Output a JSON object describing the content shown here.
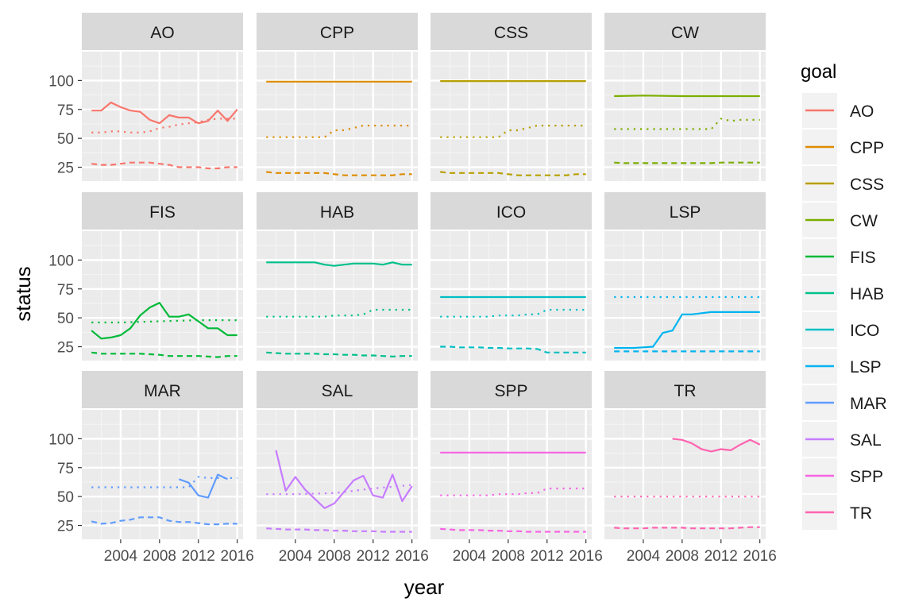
{
  "chart_data": {
    "type": "line",
    "xlabel": "year",
    "ylabel": "status",
    "legend_title": "goal",
    "legend_position": "right",
    "grid": true,
    "x_ticks": [
      "2004",
      "2008",
      "2012",
      "2016"
    ],
    "y_ticks": [
      "25",
      "50",
      "75",
      "100"
    ],
    "xlim": [
      2000,
      2016.6
    ],
    "ylim": [
      13,
      125
    ],
    "facets": [
      {
        "goal": "AO",
        "color": "#F8766D",
        "solid": {
          "x": [
            2001,
            2002,
            2003,
            2004,
            2005,
            2006,
            2007,
            2008,
            2009,
            2010,
            2011,
            2012,
            2013,
            2014,
            2015,
            2016
          ],
          "y": [
            74,
            74,
            81,
            77,
            74,
            73,
            66,
            63,
            70,
            68,
            68,
            63,
            65,
            74,
            65,
            75
          ]
        },
        "dotted": {
          "x": [
            2001,
            2002,
            2003,
            2004,
            2005,
            2006,
            2007,
            2008,
            2009,
            2010,
            2011,
            2012,
            2013,
            2014,
            2015,
            2016
          ],
          "y": [
            55,
            55,
            56,
            56,
            55,
            55,
            56,
            59,
            60,
            62,
            63,
            64,
            66,
            67,
            67,
            67
          ]
        },
        "dashed": {
          "x": [
            2001,
            2002,
            2003,
            2004,
            2005,
            2006,
            2007,
            2008,
            2009,
            2010,
            2011,
            2012,
            2013,
            2014,
            2015,
            2016
          ],
          "y": [
            28,
            27,
            27,
            28,
            29,
            29,
            29,
            28,
            27,
            25,
            25,
            25,
            24,
            24,
            25,
            25
          ]
        }
      },
      {
        "goal": "CPP",
        "color": "#DE8C00",
        "solid": {
          "x": [
            2001,
            2004,
            2008,
            2012,
            2016
          ],
          "y": [
            99,
            99,
            99,
            99,
            99
          ]
        },
        "dotted": {
          "x": [
            2001,
            2002,
            2003,
            2004,
            2005,
            2006,
            2007,
            2008,
            2009,
            2010,
            2011,
            2012,
            2013,
            2014,
            2015,
            2016
          ],
          "y": [
            51,
            51,
            51,
            51,
            51,
            51,
            51,
            57,
            57,
            59,
            61,
            61,
            61,
            61,
            61,
            61
          ]
        },
        "dashed": {
          "x": [
            2001,
            2002,
            2003,
            2004,
            2005,
            2006,
            2007,
            2008,
            2009,
            2010,
            2011,
            2012,
            2013,
            2014,
            2015,
            2016
          ],
          "y": [
            21,
            20,
            20,
            20,
            20,
            20,
            20,
            19,
            18,
            18,
            18,
            18,
            18,
            18,
            19,
            19
          ]
        }
      },
      {
        "goal": "CSS",
        "color": "#B79F00",
        "solid": {
          "x": [
            2001,
            2004,
            2008,
            2012,
            2016
          ],
          "y": [
            99.5,
            99.5,
            99.5,
            99.5,
            99.5
          ]
        },
        "dotted": {
          "x": [
            2001,
            2002,
            2003,
            2004,
            2005,
            2006,
            2007,
            2008,
            2009,
            2010,
            2011,
            2012,
            2013,
            2014,
            2015,
            2016
          ],
          "y": [
            51,
            51,
            51,
            51,
            51,
            51,
            51,
            57,
            57,
            59,
            61,
            61,
            61,
            61,
            61,
            61
          ]
        },
        "dashed": {
          "x": [
            2001,
            2002,
            2003,
            2004,
            2005,
            2006,
            2007,
            2008,
            2009,
            2010,
            2011,
            2012,
            2013,
            2014,
            2015,
            2016
          ],
          "y": [
            21,
            20,
            20,
            20,
            20,
            20,
            20,
            19,
            18,
            18,
            18,
            18,
            18,
            18,
            19,
            19
          ]
        }
      },
      {
        "goal": "CW",
        "color": "#7CAE00",
        "solid": {
          "x": [
            2001,
            2004,
            2008,
            2012,
            2016
          ],
          "y": [
            86.5,
            87,
            86.5,
            86.5,
            86.5
          ]
        },
        "dotted": {
          "x": [
            2001,
            2002,
            2003,
            2004,
            2005,
            2006,
            2007,
            2008,
            2009,
            2010,
            2011,
            2012,
            2013,
            2014,
            2015,
            2016
          ],
          "y": [
            58,
            58,
            58,
            58,
            58,
            58,
            58,
            58,
            58,
            58,
            58,
            67,
            65,
            66,
            66,
            66
          ]
        },
        "dashed": {
          "x": [
            2001,
            2002,
            2003,
            2004,
            2005,
            2006,
            2007,
            2008,
            2009,
            2010,
            2011,
            2012,
            2013,
            2014,
            2015,
            2016
          ],
          "y": [
            29,
            28.5,
            28.5,
            28.5,
            28.5,
            28.5,
            28.5,
            28.5,
            28.5,
            28.5,
            28.5,
            29,
            29,
            29,
            29,
            29
          ]
        }
      },
      {
        "goal": "FIS",
        "color": "#00BA38",
        "solid": {
          "x": [
            2001,
            2002,
            2003,
            2004,
            2005,
            2006,
            2007,
            2008,
            2009,
            2010,
            2011,
            2012,
            2013,
            2014,
            2015,
            2016
          ],
          "y": [
            39,
            32,
            33,
            35,
            41,
            52,
            59,
            63,
            51,
            51,
            53,
            47,
            41,
            41,
            35,
            35
          ]
        },
        "dotted": {
          "x": [
            2001,
            2004,
            2008,
            2012,
            2016
          ],
          "y": [
            46,
            46,
            47,
            48,
            48
          ]
        },
        "dashed": {
          "x": [
            2001,
            2002,
            2003,
            2004,
            2005,
            2006,
            2007,
            2008,
            2009,
            2010,
            2011,
            2012,
            2013,
            2014,
            2015,
            2016
          ],
          "y": [
            20,
            19,
            19,
            19,
            19,
            19,
            18.5,
            18,
            17,
            17,
            17,
            17,
            16.5,
            16,
            17,
            17
          ]
        }
      },
      {
        "goal": "HAB",
        "color": "#00C08B",
        "solid": {
          "x": [
            2001,
            2002,
            2003,
            2004,
            2005,
            2006,
            2007,
            2008,
            2009,
            2010,
            2011,
            2012,
            2013,
            2014,
            2015,
            2016
          ],
          "y": [
            98,
            98,
            98,
            98,
            98,
            98,
            96,
            95,
            96,
            97,
            97,
            97,
            96,
            98,
            96,
            96
          ]
        },
        "dotted": {
          "x": [
            2001,
            2002,
            2003,
            2004,
            2005,
            2006,
            2007,
            2008,
            2009,
            2010,
            2011,
            2012,
            2013,
            2014,
            2015,
            2016
          ],
          "y": [
            51,
            51,
            51,
            51,
            51,
            51,
            51,
            52,
            52,
            52,
            53,
            57,
            57,
            57,
            57,
            57
          ]
        },
        "dashed": {
          "x": [
            2001,
            2002,
            2003,
            2004,
            2005,
            2006,
            2007,
            2008,
            2009,
            2010,
            2011,
            2012,
            2013,
            2014,
            2015,
            2016
          ],
          "y": [
            20,
            19.5,
            19,
            19,
            19,
            19,
            18.5,
            18.5,
            18,
            18,
            17.5,
            17.5,
            17,
            16.5,
            17,
            17
          ]
        }
      },
      {
        "goal": "ICO",
        "color": "#00BFC4",
        "solid": {
          "x": [
            2001,
            2004,
            2008,
            2012,
            2016
          ],
          "y": [
            68,
            68,
            68,
            68,
            68
          ]
        },
        "dotted": {
          "x": [
            2001,
            2002,
            2003,
            2004,
            2005,
            2006,
            2007,
            2008,
            2009,
            2010,
            2011,
            2012,
            2013,
            2014,
            2015,
            2016
          ],
          "y": [
            51,
            51,
            51,
            51,
            51,
            51,
            52,
            52,
            52,
            53,
            53,
            57,
            57,
            57,
            57,
            57
          ]
        },
        "dashed": {
          "x": [
            2001,
            2002,
            2003,
            2004,
            2005,
            2006,
            2007,
            2008,
            2009,
            2010,
            2011,
            2012,
            2013,
            2014,
            2015,
            2016
          ],
          "y": [
            25,
            25,
            24.5,
            24.5,
            24.5,
            24,
            24,
            23.5,
            23.5,
            23.5,
            23,
            20,
            20,
            20,
            20,
            20
          ]
        }
      },
      {
        "goal": "LSP",
        "color": "#00B4F0",
        "solid": {
          "x": [
            2001,
            2002,
            2003,
            2004,
            2005,
            2006,
            2007,
            2008,
            2009,
            2010,
            2011,
            2012,
            2013,
            2014,
            2015,
            2016
          ],
          "y": [
            24,
            24,
            24,
            24.5,
            25,
            37,
            39,
            53,
            53,
            54,
            55,
            55,
            55,
            55,
            55,
            55
          ]
        },
        "dotted": {
          "x": [
            2001,
            2004,
            2008,
            2012,
            2016
          ],
          "y": [
            68,
            68,
            68,
            68,
            68
          ]
        },
        "dashed": {
          "x": [
            2001,
            2004,
            2008,
            2012,
            2016
          ],
          "y": [
            21,
            21,
            21,
            21,
            21
          ]
        }
      },
      {
        "goal": "MAR",
        "color": "#619CFF",
        "solid": {
          "x": [
            2010,
            2011,
            2012,
            2013,
            2014,
            2015
          ],
          "y": [
            65,
            62,
            51,
            49,
            69,
            65
          ]
        },
        "dotted": {
          "x": [
            2001,
            2002,
            2003,
            2004,
            2005,
            2006,
            2007,
            2008,
            2009,
            2010,
            2011,
            2012,
            2013,
            2014,
            2015,
            2016
          ],
          "y": [
            58,
            58,
            58,
            58,
            58,
            58,
            58,
            58,
            58,
            58,
            58,
            67,
            66,
            66,
            66,
            66
          ]
        },
        "dashed": {
          "x": [
            2001,
            2002,
            2003,
            2004,
            2005,
            2006,
            2007,
            2008,
            2009,
            2010,
            2011,
            2012,
            2013,
            2014,
            2015,
            2016
          ],
          "y": [
            28.5,
            26.5,
            27,
            29,
            30,
            32,
            32,
            32,
            29,
            28,
            28,
            27,
            26,
            26,
            26.5,
            26.5
          ]
        }
      },
      {
        "goal": "SAL",
        "color": "#C77CFF",
        "solid": {
          "x": [
            2002,
            2003,
            2004,
            2005,
            2006,
            2007,
            2008,
            2009,
            2010,
            2011,
            2012,
            2013,
            2014,
            2015,
            2016
          ],
          "y": [
            90,
            55,
            67,
            56,
            48,
            40,
            44,
            54,
            64,
            68,
            51,
            49,
            69,
            46,
            59
          ]
        },
        "dotted": {
          "x": [
            2001,
            2004,
            2008,
            2012,
            2016
          ],
          "y": [
            52,
            52,
            53,
            57,
            60
          ]
        },
        "dashed": {
          "x": [
            2001,
            2002,
            2003,
            2004,
            2005,
            2006,
            2007,
            2008,
            2009,
            2010,
            2011,
            2012,
            2013,
            2014,
            2015,
            2016
          ],
          "y": [
            22.5,
            22,
            21.5,
            21.5,
            21.5,
            21,
            21,
            20.5,
            20.5,
            20,
            20,
            20,
            19.5,
            19.5,
            19.5,
            19.5
          ]
        }
      },
      {
        "goal": "SPP",
        "color": "#F564E3",
        "solid": {
          "x": [
            2001,
            2004,
            2008,
            2012,
            2016
          ],
          "y": [
            88,
            88,
            88,
            88,
            88
          ]
        },
        "dotted": {
          "x": [
            2001,
            2002,
            2003,
            2004,
            2005,
            2006,
            2007,
            2008,
            2009,
            2010,
            2011,
            2012,
            2013,
            2014,
            2015,
            2016
          ],
          "y": [
            51,
            51,
            51,
            51,
            51,
            51,
            52,
            52,
            52,
            53,
            53,
            57,
            57,
            57,
            57,
            57
          ]
        },
        "dashed": {
          "x": [
            2001,
            2002,
            2003,
            2004,
            2005,
            2006,
            2007,
            2008,
            2009,
            2010,
            2011,
            2012,
            2013,
            2014,
            2015,
            2016
          ],
          "y": [
            22,
            21.5,
            21,
            21,
            21,
            20.5,
            20.5,
            20,
            20,
            19.5,
            19.5,
            19.5,
            19.5,
            19.5,
            19.5,
            19.5
          ]
        }
      },
      {
        "goal": "TR",
        "color": "#FF64B0",
        "solid": {
          "x": [
            2007,
            2008,
            2009,
            2010,
            2011,
            2012,
            2013,
            2014,
            2015,
            2016
          ],
          "y": [
            100,
            99,
            96,
            91,
            89,
            91,
            90,
            95,
            99,
            95
          ]
        },
        "dotted": {
          "x": [
            2001,
            2004,
            2008,
            2012,
            2016
          ],
          "y": [
            50,
            50,
            50,
            50,
            50
          ]
        },
        "dashed": {
          "x": [
            2001,
            2002,
            2003,
            2004,
            2005,
            2006,
            2007,
            2008,
            2009,
            2010,
            2011,
            2012,
            2013,
            2014,
            2015,
            2016
          ],
          "y": [
            23,
            22.5,
            22.5,
            22.5,
            23,
            23,
            23,
            23,
            22.5,
            22.5,
            22.5,
            22.5,
            22.5,
            23,
            23.5,
            23.5
          ]
        }
      }
    ]
  }
}
